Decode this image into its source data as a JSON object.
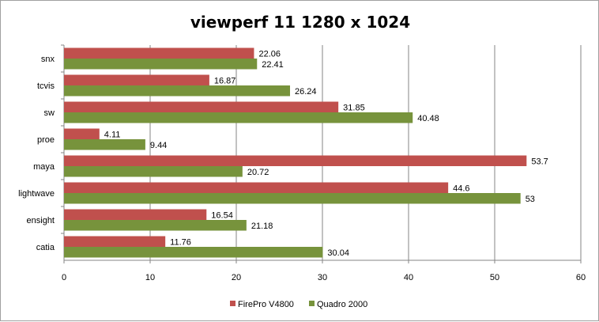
{
  "chart_data": {
    "type": "bar",
    "orientation": "horizontal",
    "title": "viewperf 11 1280 x 1024",
    "categories": [
      "snx",
      "tcvis",
      "sw",
      "proe",
      "maya",
      "lightwave",
      "ensight",
      "catia"
    ],
    "series": [
      {
        "name": "FirePro V4800",
        "color": "#c0504d",
        "values": [
          22.06,
          16.87,
          31.85,
          4.11,
          53.7,
          44.6,
          16.54,
          11.76
        ]
      },
      {
        "name": "Quadro 2000",
        "color": "#77933c",
        "values": [
          22.41,
          26.24,
          40.48,
          9.44,
          20.72,
          53,
          21.18,
          30.04
        ]
      }
    ],
    "xlim": [
      0,
      60
    ],
    "xticks": [
      0,
      10,
      20,
      30,
      40,
      50,
      60
    ],
    "grid": true,
    "legend_position": "bottom"
  }
}
